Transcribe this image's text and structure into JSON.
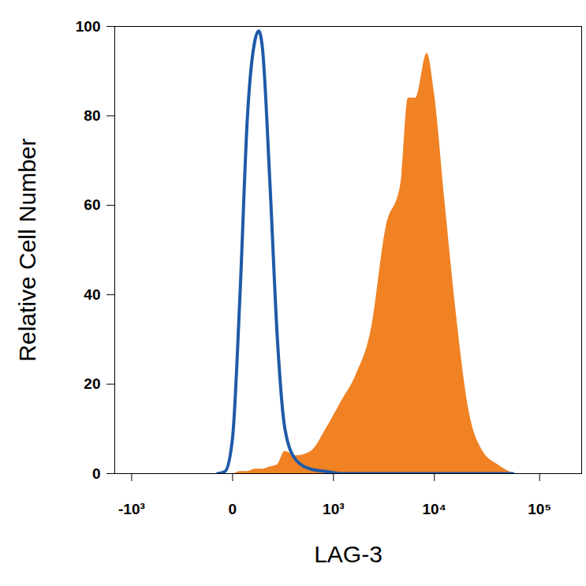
{
  "chart_data": {
    "type": "line",
    "x_label": "LAG-3",
    "y_label": "Relative Cell Number",
    "log": "x",
    "x": [
      -48,
      -22,
      0,
      22,
      48,
      79,
      96,
      115,
      157,
      207,
      266,
      374,
      566,
      832,
      1200,
      1710,
      2420,
      3400,
      4760,
      5610,
      6620,
      8500,
      10000,
      12700,
      16300,
      21000,
      29000,
      40300,
      56000
    ],
    "series": [
      {
        "type": "area",
        "color": "#f08224",
        "values": [
          0,
          0,
          0,
          0.5,
          0.5,
          1,
          1,
          1,
          1.5,
          2,
          5,
          4,
          5,
          10,
          16,
          22,
          32,
          55,
          65,
          84,
          84,
          94,
          85,
          60,
          35,
          15,
          5,
          2,
          0
        ]
      },
      {
        "type": "line",
        "color": "#1f5aa8",
        "values": [
          0,
          0.5,
          8,
          40,
          80,
          97,
          99,
          95,
          65,
          30,
          10,
          3,
          1,
          0.5,
          0,
          0,
          0,
          0,
          0,
          0,
          0,
          0,
          0,
          0,
          0,
          0,
          0,
          0,
          0
        ]
      }
    ],
    "xlim": [
      -1500,
      250000
    ],
    "xticks": [
      {
        "value": -1000,
        "label": "-10³"
      },
      0,
      {
        "value": 1000,
        "label": "10³"
      },
      {
        "value": 10000,
        "label": "10⁴"
      },
      {
        "value": 100000,
        "label": "10⁵"
      }
    ],
    "ylim": [
      0,
      100
    ],
    "yticks": [
      0,
      20,
      40,
      60,
      80,
      100
    ]
  }
}
